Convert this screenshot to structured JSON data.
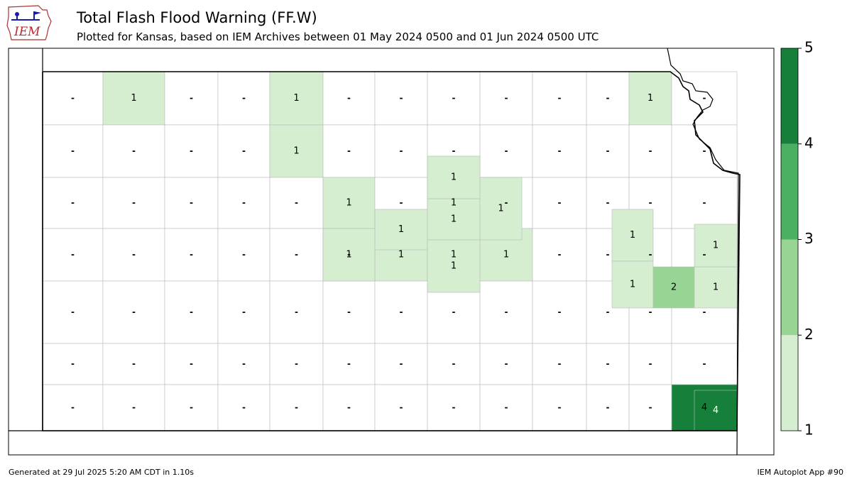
{
  "header": {
    "title": "Total Flash Flood Warning (FF.W)",
    "subtitle": "Plotted for Kansas, based on IEM Archives  between 01 May 2024 0500 and 01 Jun 2024 0500 UTC",
    "logo_text": "IEM"
  },
  "legend": {
    "ticks": [
      "1",
      "2",
      "3",
      "4",
      "5"
    ],
    "colors": [
      "#d4eecf",
      "#98d594",
      "#4bb062",
      "#16803a"
    ]
  },
  "map_data": {
    "no_data_label": "-",
    "counties": [
      {
        "r": 0,
        "c": 0,
        "v": ""
      },
      {
        "r": 0,
        "c": 1,
        "v": "1"
      },
      {
        "r": 0,
        "c": 2,
        "v": ""
      },
      {
        "r": 0,
        "c": 3,
        "v": ""
      },
      {
        "r": 0,
        "c": 4,
        "v": "1"
      },
      {
        "r": 0,
        "c": 5,
        "v": ""
      },
      {
        "r": 0,
        "c": 6,
        "v": ""
      },
      {
        "r": 0,
        "c": 7,
        "v": ""
      },
      {
        "r": 0,
        "c": 8,
        "v": ""
      },
      {
        "r": 0,
        "c": 9,
        "v": ""
      },
      {
        "r": 0,
        "c": 10,
        "v": ""
      },
      {
        "r": 0,
        "c": 11,
        "v": "1"
      },
      {
        "r": 0,
        "c": 12,
        "v": ""
      },
      {
        "r": 1,
        "c": 0,
        "v": ""
      },
      {
        "r": 1,
        "c": 1,
        "v": ""
      },
      {
        "r": 1,
        "c": 2,
        "v": ""
      },
      {
        "r": 1,
        "c": 3,
        "v": ""
      },
      {
        "r": 1,
        "c": 4,
        "v": "1"
      },
      {
        "r": 1,
        "c": 5,
        "v": ""
      },
      {
        "r": 1,
        "c": 6,
        "v": ""
      },
      {
        "r": 1,
        "c": 7,
        "v": ""
      },
      {
        "r": 1,
        "c": 8,
        "v": ""
      },
      {
        "r": 1,
        "c": 9,
        "v": ""
      },
      {
        "r": 1,
        "c": 10,
        "v": ""
      },
      {
        "r": 1,
        "c": 11,
        "v": ""
      },
      {
        "r": 1,
        "c": 12,
        "v": ""
      },
      {
        "r": 2,
        "c": 0,
        "v": ""
      },
      {
        "r": 2,
        "c": 1,
        "v": ""
      },
      {
        "r": 2,
        "c": 2,
        "v": ""
      },
      {
        "r": 2,
        "c": 3,
        "v": ""
      },
      {
        "r": 2,
        "c": 4,
        "v": ""
      },
      {
        "r": 2,
        "c": 5,
        "v": "1"
      },
      {
        "r": 2,
        "c": 6,
        "v": ""
      },
      {
        "r": 2,
        "c": 7,
        "v": "1"
      },
      {
        "r": 2,
        "c": 8,
        "v": ""
      },
      {
        "r": 2,
        "c": 9,
        "v": ""
      },
      {
        "r": 2,
        "c": 10,
        "v": ""
      },
      {
        "r": 2,
        "c": 11,
        "v": ""
      },
      {
        "r": 2,
        "c": 12,
        "v": ""
      },
      {
        "r": 3,
        "c": 0,
        "v": ""
      },
      {
        "r": 3,
        "c": 1,
        "v": ""
      },
      {
        "r": 3,
        "c": 2,
        "v": ""
      },
      {
        "r": 3,
        "c": 3,
        "v": ""
      },
      {
        "r": 3,
        "c": 4,
        "v": ""
      },
      {
        "r": 3,
        "c": 5,
        "v": ""
      },
      {
        "r": 3,
        "c": 6,
        "v": "1"
      },
      {
        "r": 3,
        "c": 7,
        "v": "1"
      },
      {
        "r": 3,
        "c": 8,
        "v": "1"
      },
      {
        "r": 3,
        "c": 9,
        "v": ""
      },
      {
        "r": 3,
        "c": 10,
        "v": ""
      },
      {
        "r": 3,
        "c": 11,
        "v": ""
      },
      {
        "r": 3,
        "c": 12,
        "v": ""
      },
      {
        "r": 4,
        "c": 0,
        "v": ""
      },
      {
        "r": 4,
        "c": 1,
        "v": ""
      },
      {
        "r": 4,
        "c": 2,
        "v": ""
      },
      {
        "r": 4,
        "c": 3,
        "v": ""
      },
      {
        "r": 4,
        "c": 4,
        "v": ""
      },
      {
        "r": 4,
        "c": 5,
        "v": ""
      },
      {
        "r": 4,
        "c": 6,
        "v": "1"
      },
      {
        "r": 4,
        "c": 7,
        "v": ""
      },
      {
        "r": 4,
        "c": 8,
        "v": ""
      },
      {
        "r": 4,
        "c": 9,
        "v": ""
      },
      {
        "r": 4,
        "c": 10,
        "v": ""
      },
      {
        "r": 4,
        "c": 11,
        "v": "1"
      },
      {
        "r": 4,
        "c": 12,
        "v": ""
      },
      {
        "r": 5,
        "c": 0,
        "v": ""
      },
      {
        "r": 5,
        "c": 1,
        "v": ""
      },
      {
        "r": 5,
        "c": 2,
        "v": ""
      },
      {
        "r": 5,
        "c": 3,
        "v": ""
      },
      {
        "r": 5,
        "c": 4,
        "v": "1"
      },
      {
        "r": 5,
        "c": 5,
        "v": ""
      },
      {
        "r": 5,
        "c": 6,
        "v": ""
      },
      {
        "r": 5,
        "c": 7,
        "v": ""
      },
      {
        "r": 5,
        "c": 8,
        "v": ""
      },
      {
        "r": 5,
        "c": 9,
        "v": "1"
      },
      {
        "r": 5,
        "c": 10,
        "v": ""
      },
      {
        "r": 5,
        "c": 11,
        "v": ""
      },
      {
        "r": 5,
        "c": 12,
        "v": "1"
      },
      {
        "r": 6,
        "c": 0,
        "v": ""
      },
      {
        "r": 6,
        "c": 1,
        "v": ""
      },
      {
        "r": 6,
        "c": 2,
        "v": ""
      },
      {
        "r": 6,
        "c": 3,
        "v": ""
      },
      {
        "r": 6,
        "c": 4,
        "v": ""
      },
      {
        "r": 6,
        "c": 5,
        "v": ""
      },
      {
        "r": 6,
        "c": 6,
        "v": "1"
      },
      {
        "r": 6,
        "c": 7,
        "v": ""
      },
      {
        "r": 6,
        "c": 8,
        "v": ""
      },
      {
        "r": 6,
        "c": 9,
        "v": ""
      },
      {
        "r": 6,
        "c": 10,
        "v": "1"
      },
      {
        "r": 6,
        "c": 11,
        "v": "2"
      },
      {
        "r": 6,
        "c": 12,
        "v": "1"
      },
      {
        "r": 7,
        "c": 0,
        "v": ""
      },
      {
        "r": 7,
        "c": 1,
        "v": ""
      },
      {
        "r": 7,
        "c": 2,
        "v": ""
      },
      {
        "r": 7,
        "c": 3,
        "v": ""
      },
      {
        "r": 7,
        "c": 4,
        "v": ""
      },
      {
        "r": 7,
        "c": 5,
        "v": ""
      },
      {
        "r": 7,
        "c": 6,
        "v": ""
      },
      {
        "r": 7,
        "c": 7,
        "v": ""
      },
      {
        "r": 7,
        "c": 8,
        "v": ""
      },
      {
        "r": 7,
        "c": 9,
        "v": ""
      },
      {
        "r": 7,
        "c": 10,
        "v": ""
      },
      {
        "r": 7,
        "c": 11,
        "v": ""
      },
      {
        "r": 7,
        "c": 12,
        "v": ""
      },
      {
        "r": 8,
        "c": 0,
        "v": ""
      },
      {
        "r": 8,
        "c": 1,
        "v": ""
      },
      {
        "r": 8,
        "c": 2,
        "v": ""
      },
      {
        "r": 8,
        "c": 3,
        "v": ""
      },
      {
        "r": 8,
        "c": 4,
        "v": ""
      },
      {
        "r": 8,
        "c": 5,
        "v": ""
      },
      {
        "r": 8,
        "c": 6,
        "v": ""
      },
      {
        "r": 8,
        "c": 7,
        "v": ""
      },
      {
        "r": 8,
        "c": 8,
        "v": ""
      },
      {
        "r": 8,
        "c": 9,
        "v": ""
      },
      {
        "r": 8,
        "c": 10,
        "v": ""
      },
      {
        "r": 8,
        "c": 11,
        "v": ""
      },
      {
        "r": 8,
        "c": 12,
        "v": ""
      },
      {
        "r": 9,
        "c": 0,
        "v": ""
      },
      {
        "r": 9,
        "c": 1,
        "v": ""
      },
      {
        "r": 9,
        "c": 2,
        "v": ""
      },
      {
        "r": 9,
        "c": 3,
        "v": ""
      },
      {
        "r": 9,
        "c": 4,
        "v": ""
      },
      {
        "r": 9,
        "c": 5,
        "v": ""
      },
      {
        "r": 9,
        "c": 6,
        "v": ""
      },
      {
        "r": 9,
        "c": 7,
        "v": ""
      },
      {
        "r": 9,
        "c": 8,
        "v": ""
      },
      {
        "r": 9,
        "c": 9,
        "v": ""
      },
      {
        "r": 9,
        "c": 10,
        "v": ""
      },
      {
        "r": 9,
        "c": 11,
        "v": ""
      },
      {
        "r": 9,
        "c": 12,
        "v": "4"
      }
    ]
  },
  "footer": {
    "generated": "Generated at 29 Jul 2025 5:20 AM CDT in 1.10s",
    "app": "IEM Autoplot App #90"
  }
}
